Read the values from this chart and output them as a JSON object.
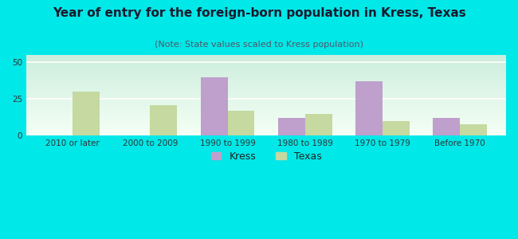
{
  "title": "Year of entry for the foreign-born population in Kress, Texas",
  "subtitle": "(Note: State values scaled to Kress population)",
  "categories": [
    "2010 or later",
    "2000 to 2009",
    "1990 to 1999",
    "1980 to 1989",
    "1970 to 1979",
    "Before 1970"
  ],
  "kress_values": [
    0,
    0,
    40,
    12,
    37,
    12
  ],
  "texas_values": [
    30,
    21,
    17,
    15,
    10,
    8
  ],
  "kress_color": "#bf9fcc",
  "texas_color": "#c5d9a0",
  "background_color": "#00e8e8",
  "grad_top": "#cceedd",
  "grad_bottom": "#f5fff5",
  "ylim": [
    0,
    55
  ],
  "yticks": [
    0,
    25,
    50
  ],
  "bar_width": 0.35,
  "title_fontsize": 11,
  "subtitle_fontsize": 8,
  "tick_fontsize": 7.5,
  "legend_fontsize": 9
}
